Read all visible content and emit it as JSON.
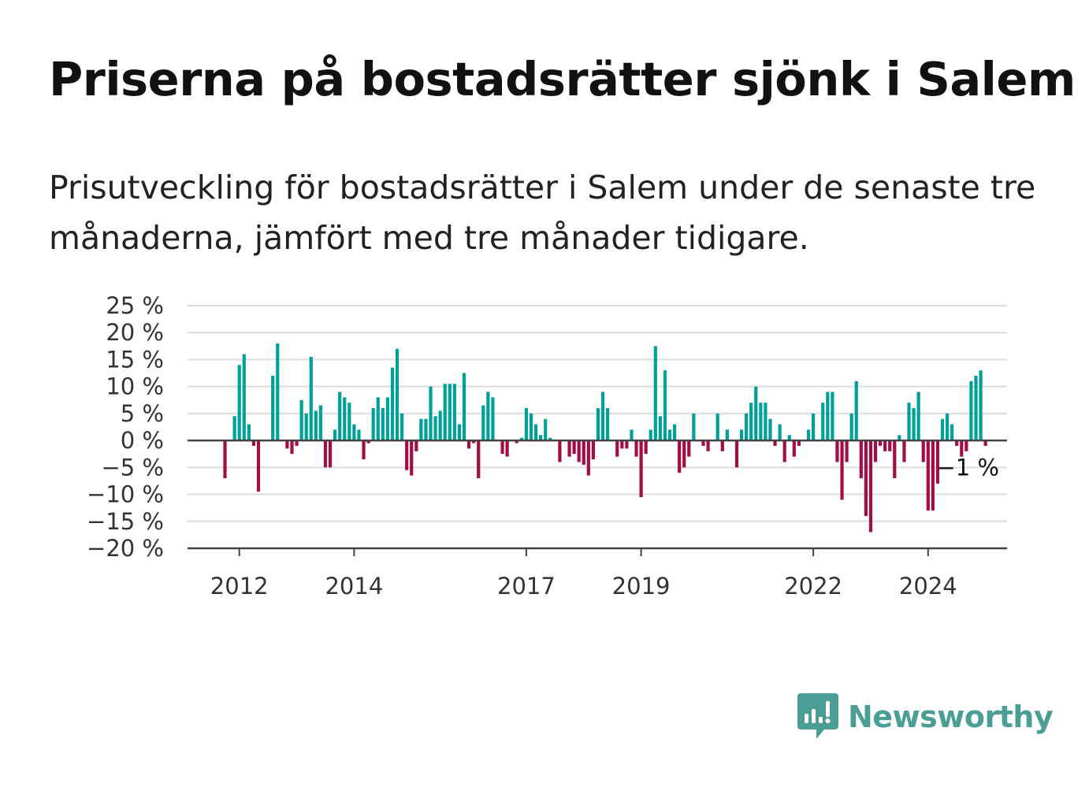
{
  "title": "Priserna på bostadsrätter sjönk i Salem",
  "subtitle": "Prisutveckling för bostadsrätter i Salem under de senaste tre månaderna, jämfört med tre månader tidigare.",
  "logo": {
    "text": "Newsworthy",
    "icon": "newsworthy-chart-icon"
  },
  "colors": {
    "positive": "#00a09a",
    "negative": "#a10d45",
    "grid": "#dddddd",
    "axis": "#444444"
  },
  "chart_data": {
    "type": "bar",
    "y_unit": "%",
    "ylim": [
      -20,
      25
    ],
    "y_ticks": [
      25,
      20,
      15,
      10,
      5,
      0,
      -5,
      -10,
      -15,
      -20
    ],
    "y_tick_labels": [
      "25 %",
      "20 %",
      "15 %",
      "10 %",
      "5 %",
      "0 %",
      "−5 %",
      "−10 %",
      "−15 %",
      "−20 %"
    ],
    "x_ticks": [
      {
        "label": "2012",
        "x": 2012.0
      },
      {
        "label": "2014",
        "x": 2014.0
      },
      {
        "label": "2017",
        "x": 2017.0
      },
      {
        "label": "2019",
        "x": 2019.0
      },
      {
        "label": "2022",
        "x": 2022.0
      },
      {
        "label": "2024",
        "x": 2024.0
      }
    ],
    "x_start": 2011.75,
    "x_step_months": 1,
    "grid": true,
    "last_value_label": "−1 %",
    "values": [
      -7,
      0,
      4.5,
      14,
      16,
      3,
      -1,
      -9.5,
      0,
      0,
      12,
      18,
      0,
      -1.5,
      -2.5,
      -1,
      7.5,
      5,
      15.5,
      5.5,
      6.5,
      -5,
      -5,
      2,
      9,
      8,
      7,
      3,
      2,
      -3.5,
      -0.5,
      6,
      8,
      6,
      8,
      13.5,
      17,
      5,
      -5.5,
      -6.5,
      -2,
      4,
      4,
      10,
      4.5,
      5.5,
      10.5,
      10.5,
      10.5,
      3,
      12.5,
      -1.5,
      -0.5,
      -7,
      6.5,
      9,
      8,
      0,
      -2.5,
      -3,
      0,
      -0.5,
      0.5,
      6,
      5,
      3,
      1,
      4,
      0.5,
      0,
      -4,
      0,
      -3,
      -2.5,
      -4,
      -4.5,
      -6.5,
      -3.5,
      6,
      9,
      6,
      0,
      -3,
      -1.5,
      -1.5,
      2,
      -3,
      -10.5,
      -2.5,
      2,
      17.5,
      4.5,
      13,
      2,
      3,
      -6,
      -5,
      -3,
      5,
      0,
      -1,
      -2,
      0,
      5,
      -2,
      2,
      0,
      -5,
      2,
      5,
      7,
      10,
      7,
      7,
      4,
      -1,
      3,
      -4,
      1,
      -3,
      -1,
      0,
      2,
      5,
      0,
      7,
      9,
      9,
      -4,
      -11,
      -4,
      5,
      11,
      -7,
      -14,
      -17,
      -4,
      -1,
      -2,
      -2,
      -7,
      1,
      -4,
      7,
      6,
      9,
      -4,
      -13,
      -13,
      -8,
      4,
      5,
      3,
      -1,
      -3,
      -2,
      11,
      12,
      13,
      -1
    ]
  }
}
